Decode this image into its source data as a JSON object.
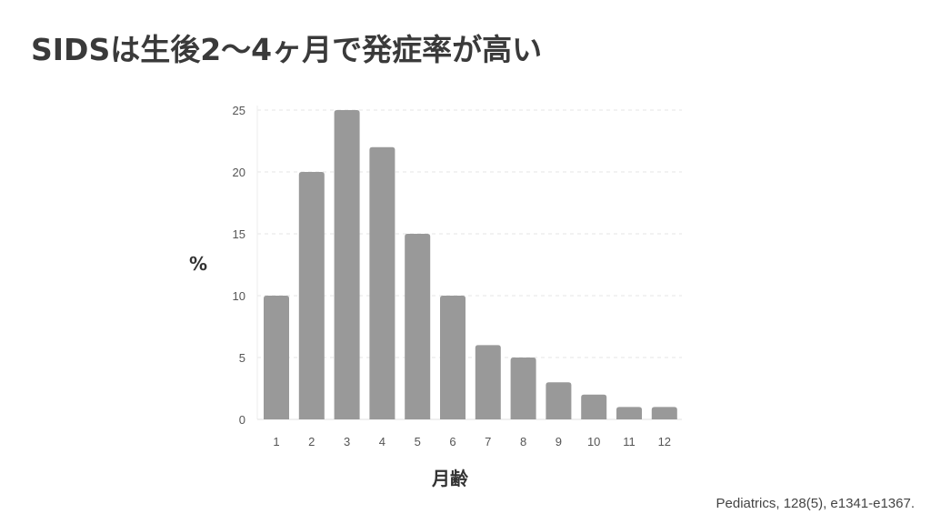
{
  "title": "SIDSは生後2〜4ヶ月で発症率が高い",
  "citation": "Pediatrics, 128(5), e1341-e1367.",
  "chart_data": {
    "type": "bar",
    "title": "",
    "xlabel": "月齢",
    "ylabel": "%",
    "categories": [
      "1",
      "2",
      "3",
      "4",
      "5",
      "6",
      "7",
      "8",
      "9",
      "10",
      "11",
      "12"
    ],
    "values": [
      10,
      20,
      25,
      22,
      15,
      10,
      6,
      5,
      3,
      2,
      1,
      1
    ],
    "ylim": [
      0,
      25
    ],
    "yticks": [
      0,
      5,
      10,
      15,
      20,
      25
    ],
    "grid": true,
    "bar_color": "#999999",
    "grid_color": "#e6e6e6"
  }
}
